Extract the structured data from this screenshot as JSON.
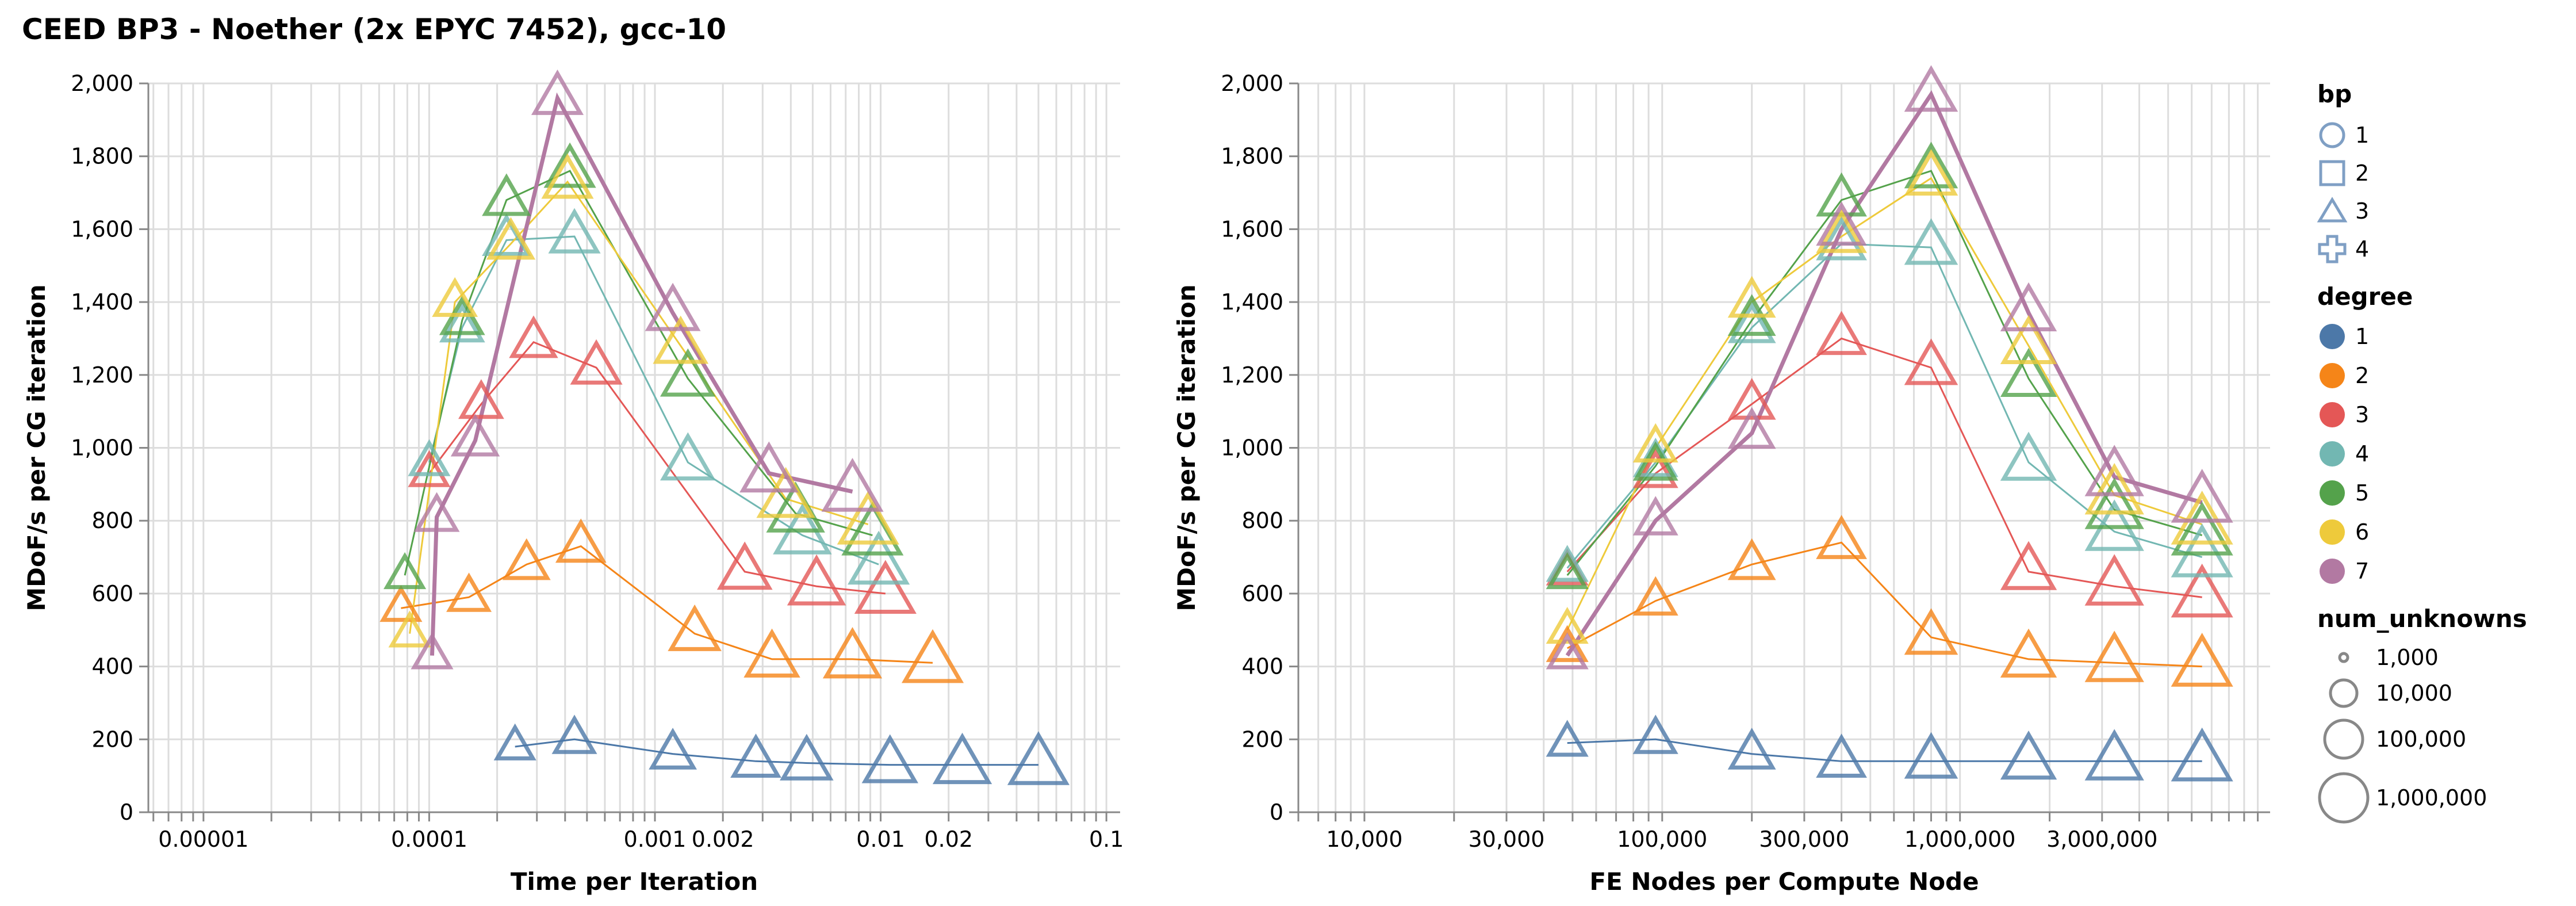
{
  "title": "CEED BP3 - Noether (2x EPYC 7452), gcc-10",
  "legend": {
    "bp": {
      "title": "bp",
      "items": [
        {
          "label": "1",
          "shape": "circle"
        },
        {
          "label": "2",
          "shape": "square"
        },
        {
          "label": "3",
          "shape": "triangle"
        },
        {
          "label": "4",
          "shape": "cross"
        }
      ]
    },
    "degree": {
      "title": "degree",
      "items": [
        {
          "label": "1",
          "color": "#4c78a8"
        },
        {
          "label": "2",
          "color": "#f58518"
        },
        {
          "label": "3",
          "color": "#e45756"
        },
        {
          "label": "4",
          "color": "#72b7b2"
        },
        {
          "label": "5",
          "color": "#54a24b"
        },
        {
          "label": "6",
          "color": "#eeca3b"
        },
        {
          "label": "7",
          "color": "#b279a2"
        }
      ]
    },
    "num_unknowns": {
      "title": "num_unknowns",
      "items": [
        {
          "label": "1,000",
          "value": 1000
        },
        {
          "label": "10,000",
          "value": 10000
        },
        {
          "label": "100,000",
          "value": 100000
        },
        {
          "label": "1,000,000",
          "value": 1000000
        }
      ]
    }
  },
  "chart_data": [
    {
      "type": "line",
      "xscale": "log",
      "xlabel": "Time per Iteration",
      "ylabel": "MDoF/s per CG iteration",
      "xlim": [
        5.7e-06,
        0.115
      ],
      "ylim": [
        0,
        2000
      ],
      "xticks": [
        {
          "value": 1e-05,
          "label": "0.00001"
        },
        {
          "value": 0.0001,
          "label": "0.0001"
        },
        {
          "value": 0.001,
          "label": "0.001"
        },
        {
          "value": 0.002,
          "label": "0.002"
        },
        {
          "value": 0.01,
          "label": "0.01"
        },
        {
          "value": 0.02,
          "label": "0.02"
        },
        {
          "value": 0.1,
          "label": "0.1"
        }
      ],
      "yticks": [
        {
          "value": 0,
          "label": "0"
        },
        {
          "value": 200,
          "label": "200"
        },
        {
          "value": 400,
          "label": "400"
        },
        {
          "value": 600,
          "label": "600"
        },
        {
          "value": 800,
          "label": "800"
        },
        {
          "value": 1000,
          "label": "1,000"
        },
        {
          "value": 1200,
          "label": "1,200"
        },
        {
          "value": 1400,
          "label": "1,400"
        },
        {
          "value": 1600,
          "label": "1,600"
        },
        {
          "value": 1800,
          "label": "1,800"
        },
        {
          "value": 2000,
          "label": "2,000"
        }
      ],
      "grid": true,
      "series": [
        {
          "degree": "1",
          "x": [
            0.00024,
            0.00044,
            0.0012,
            0.0028,
            0.0047,
            0.011,
            0.023,
            0.05
          ],
          "y": [
            180,
            200,
            160,
            140,
            135,
            130,
            130,
            130
          ]
        },
        {
          "degree": "2",
          "x": [
            7.5e-05,
            0.00015,
            0.00027,
            0.00047,
            0.0015,
            0.0033,
            0.0075,
            0.017
          ],
          "y": [
            560,
            590,
            680,
            730,
            490,
            420,
            420,
            410
          ]
        },
        {
          "degree": "3",
          "x": [
            0.0001,
            0.00017,
            0.00029,
            0.00055,
            0.0025,
            0.0052,
            0.0105
          ],
          "y": [
            930,
            1120,
            1290,
            1220,
            660,
            620,
            600
          ]
        },
        {
          "degree": "4",
          "x": [
            0.0001,
            0.00014,
            0.00022,
            0.00044,
            0.0014,
            0.0045,
            0.0098
          ],
          "y": [
            960,
            1330,
            1570,
            1580,
            960,
            760,
            680
          ]
        },
        {
          "degree": "5",
          "x": [
            7.8e-05,
            0.00014,
            0.00022,
            0.00042,
            0.0014,
            0.0042,
            0.0092
          ],
          "y": [
            650,
            1350,
            1680,
            1760,
            1190,
            820,
            760
          ]
        },
        {
          "degree": "6",
          "x": [
            8.2e-05,
            0.00013,
            0.00023,
            0.00041,
            0.0013,
            0.0038,
            0.0088
          ],
          "y": [
            490,
            1400,
            1560,
            1730,
            1280,
            860,
            790
          ]
        },
        {
          "degree": "7",
          "x": [
            0.000103,
            0.000108,
            0.00016,
            0.00037,
            0.0012,
            0.0032,
            0.0075
          ],
          "y": [
            430,
            810,
            1020,
            1960,
            1370,
            930,
            880
          ]
        }
      ]
    },
    {
      "type": "line",
      "xscale": "log",
      "xlabel": "FE Nodes per Compute Node",
      "ylabel": "MDoF/s per CG iteration",
      "xlim": [
        6000,
        11000000
      ],
      "ylim": [
        0,
        2000
      ],
      "xticks": [
        {
          "value": 10000,
          "label": "10,000"
        },
        {
          "value": 30000,
          "label": "30,000"
        },
        {
          "value": 100000,
          "label": "100,000"
        },
        {
          "value": 300000,
          "label": "300,000"
        },
        {
          "value": 1000000,
          "label": "1,000,000"
        },
        {
          "value": 3000000,
          "label": "3,000,000"
        }
      ],
      "yticks": [
        {
          "value": 0,
          "label": "0"
        },
        {
          "value": 200,
          "label": "200"
        },
        {
          "value": 400,
          "label": "400"
        },
        {
          "value": 600,
          "label": "600"
        },
        {
          "value": 800,
          "label": "800"
        },
        {
          "value": 1000,
          "label": "1,000"
        },
        {
          "value": 1200,
          "label": "1,200"
        },
        {
          "value": 1400,
          "label": "1,400"
        },
        {
          "value": 1600,
          "label": "1,600"
        },
        {
          "value": 1800,
          "label": "1,800"
        },
        {
          "value": 2000,
          "label": "2,000"
        }
      ],
      "grid": true,
      "series": [
        {
          "degree": "1",
          "x": [
            48000,
            95000,
            200000,
            400000,
            800000,
            1700000,
            3300000,
            6500000
          ],
          "y": [
            190,
            200,
            160,
            140,
            140,
            140,
            140,
            140
          ]
        },
        {
          "degree": "2",
          "x": [
            48000,
            95000,
            200000,
            400000,
            800000,
            1700000,
            3300000,
            6500000
          ],
          "y": [
            450,
            580,
            680,
            740,
            480,
            420,
            410,
            400
          ]
        },
        {
          "degree": "3",
          "x": [
            48000,
            95000,
            200000,
            400000,
            800000,
            1700000,
            3300000,
            6500000
          ],
          "y": [
            660,
            930,
            1120,
            1300,
            1220,
            660,
            620,
            590
          ]
        },
        {
          "degree": "4",
          "x": [
            48000,
            95000,
            200000,
            400000,
            800000,
            1700000,
            3300000,
            6500000
          ],
          "y": [
            670,
            960,
            1330,
            1560,
            1550,
            960,
            770,
            700
          ]
        },
        {
          "degree": "5",
          "x": [
            48000,
            95000,
            200000,
            400000,
            800000,
            1700000,
            3300000,
            6500000
          ],
          "y": [
            650,
            950,
            1350,
            1680,
            1760,
            1190,
            830,
            760
          ]
        },
        {
          "degree": "6",
          "x": [
            48000,
            95000,
            200000,
            400000,
            800000,
            1700000,
            3300000,
            6500000
          ],
          "y": [
            500,
            1000,
            1400,
            1580,
            1740,
            1280,
            870,
            790
          ]
        },
        {
          "degree": "7",
          "x": [
            48000,
            95000,
            200000,
            400000,
            800000,
            1700000,
            3300000,
            6500000
          ],
          "y": [
            430,
            800,
            1040,
            1600,
            1970,
            1370,
            920,
            850
          ]
        }
      ]
    }
  ]
}
